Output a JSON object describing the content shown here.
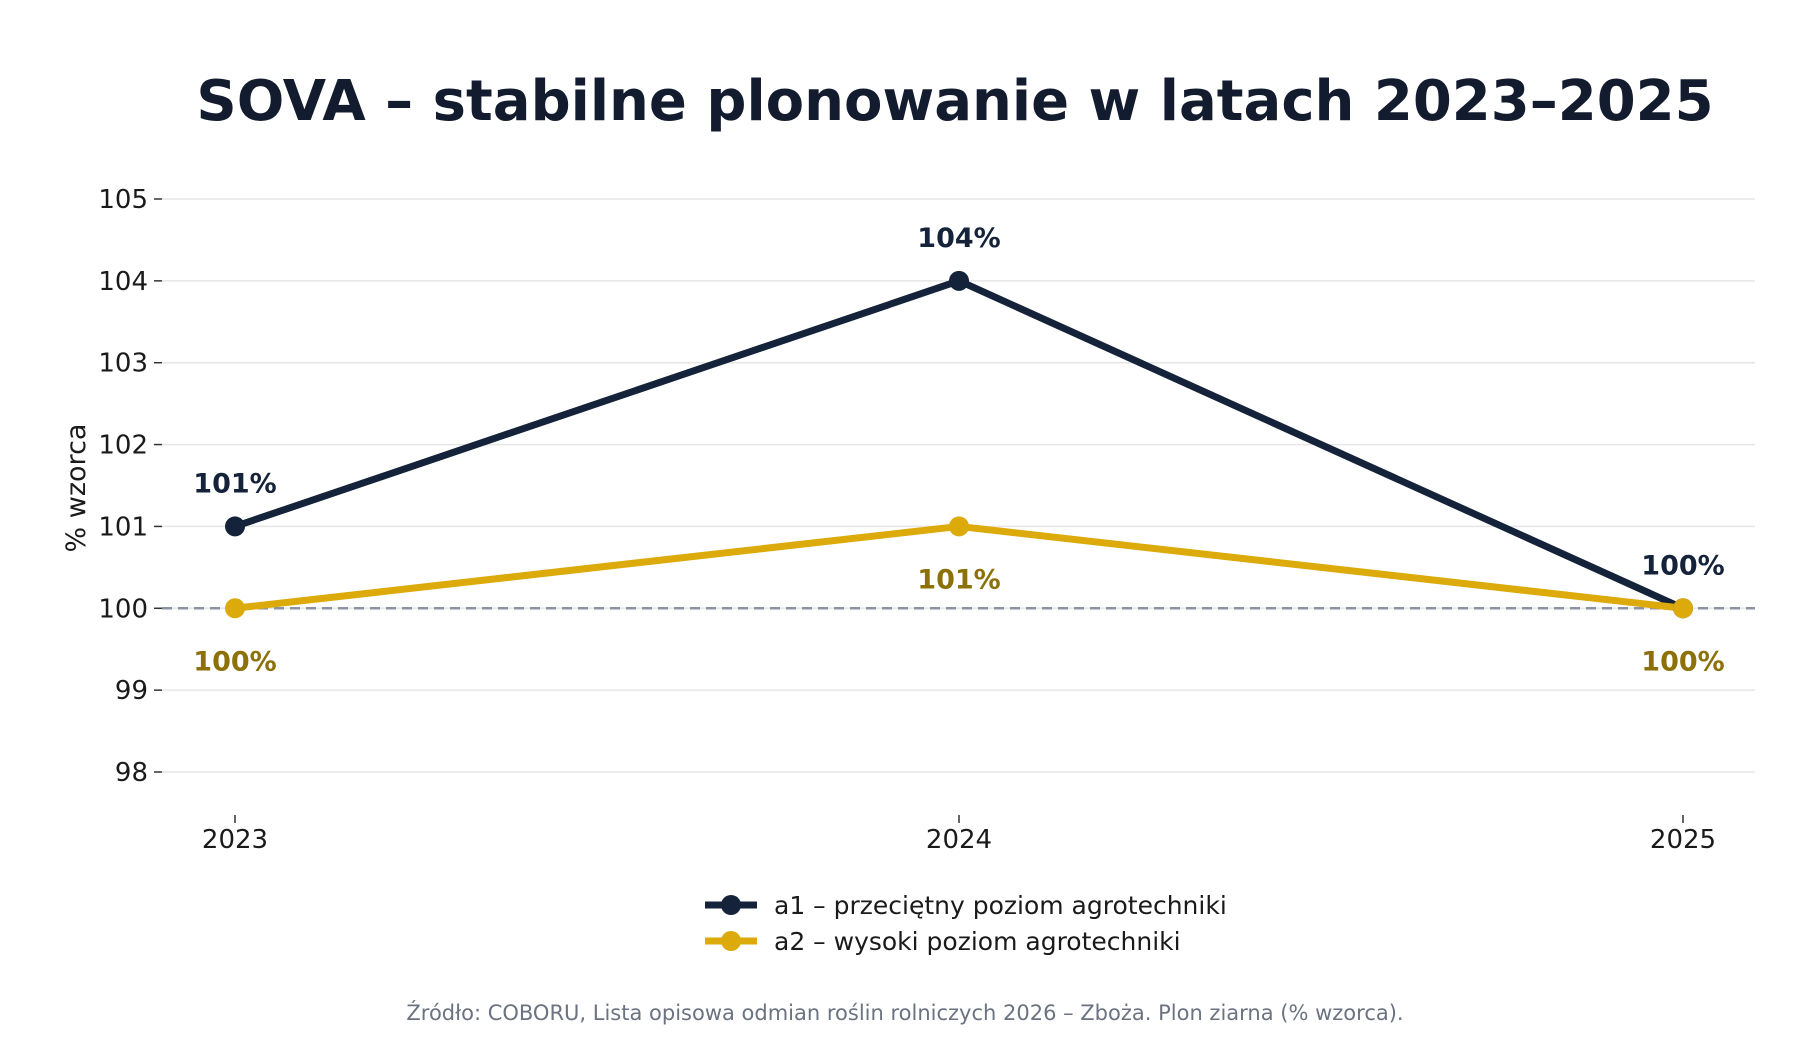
{
  "chart_data": {
    "type": "line",
    "title": "SOVA – stabilne plonowanie w latach 2023–2025",
    "ylabel": "% wzorca",
    "xlabel": "",
    "categories": [
      "2023",
      "2024",
      "2025"
    ],
    "y_ticks": [
      98,
      99,
      100,
      101,
      102,
      103,
      104,
      105
    ],
    "ylim": [
      97.5,
      105.3
    ],
    "grid": "horizontal",
    "reference_line": 100,
    "legend_position": "bottom-center",
    "series": [
      {
        "name": "a1 – przeciętny poziom agrotechniki",
        "values": [
          101,
          104,
          100
        ],
        "labels": [
          "101%",
          "104%",
          "100%"
        ],
        "label_placement": [
          "above",
          "above",
          "above"
        ],
        "color": "#14233a",
        "label_color": "#14233a"
      },
      {
        "name": "a2 – wysoki poziom agrotechniki",
        "values": [
          100,
          101,
          100
        ],
        "labels": [
          "100%",
          "101%",
          "100%"
        ],
        "label_placement": [
          "below",
          "below",
          "below"
        ],
        "color": "#dcaa0a",
        "label_color": "#8c7108"
      }
    ],
    "source": "Źródło: COBORU, Lista opisowa odmian roślin rolniczych 2026 – Zboża. Plon ziarna (% wzorca)."
  }
}
